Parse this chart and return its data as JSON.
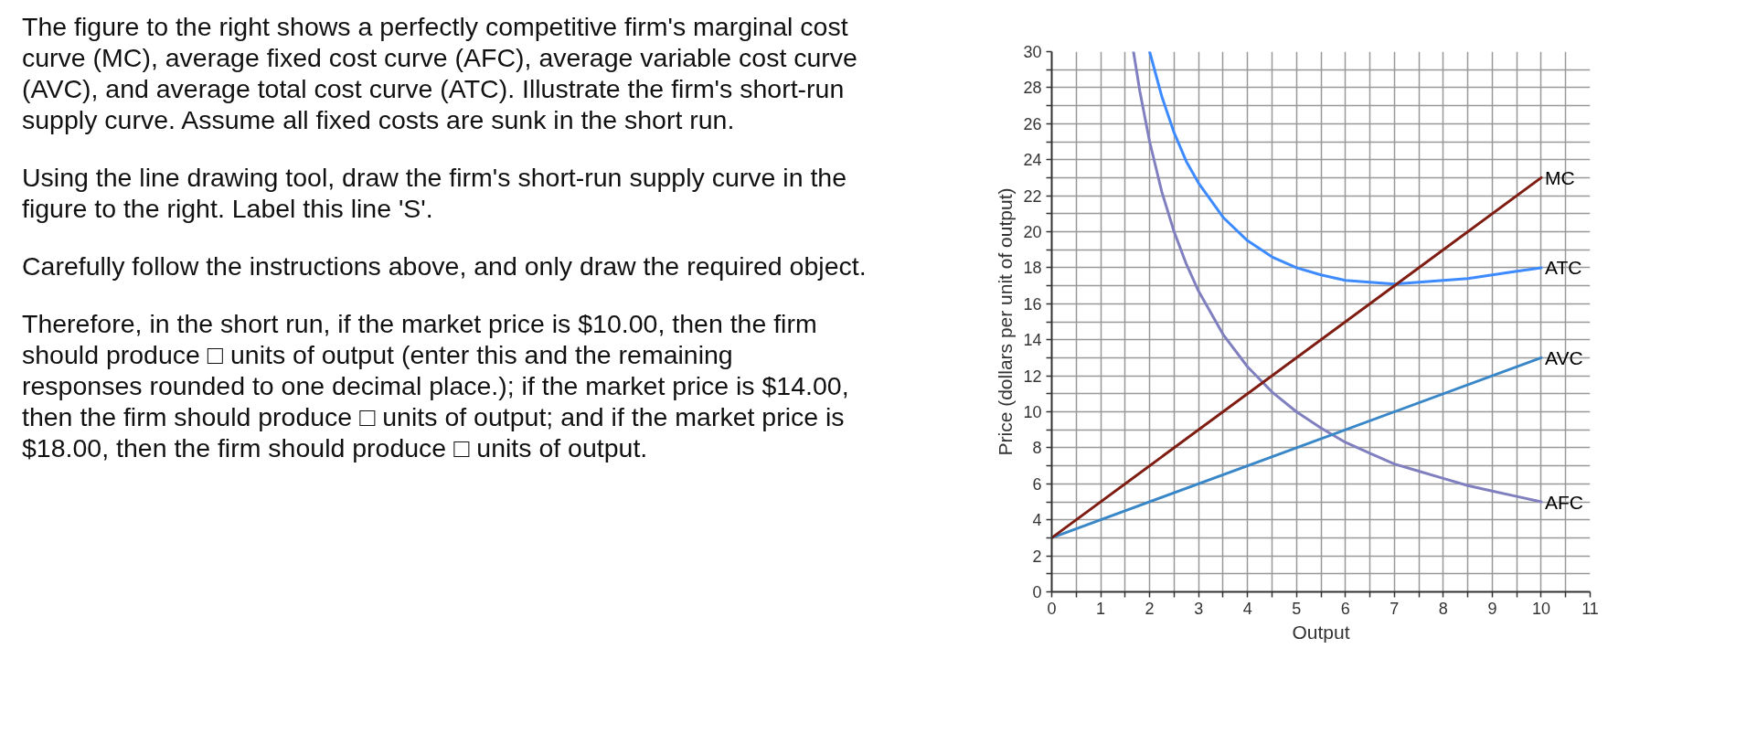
{
  "chart_data": {
    "type": "line",
    "xlabel": "Output",
    "ylabel": "Price (dollars per unit of output)",
    "xlim": [
      0,
      11
    ],
    "ylim": [
      0,
      30
    ],
    "xticks": [
      0,
      {
        "value": 0.5,
        "label": null
      },
      1,
      {
        "value": 1.5,
        "label": null
      },
      2,
      {
        "value": 2.5,
        "label": null
      },
      3,
      {
        "value": 3.5,
        "label": null
      },
      4,
      {
        "value": 4.5,
        "label": null
      },
      5,
      {
        "value": 5.5,
        "label": null
      },
      6,
      {
        "value": 6.5,
        "label": null
      },
      7,
      {
        "value": 7.5,
        "label": null
      },
      8,
      {
        "value": 8.5,
        "label": null
      },
      9,
      {
        "value": 9.5,
        "label": null
      },
      10,
      {
        "value": 10.5,
        "label": null
      },
      11
    ],
    "yticks": [
      0,
      {
        "value": 1,
        "label": null
      },
      2,
      {
        "value": 3,
        "label": null
      },
      4,
      {
        "value": 5,
        "label": null
      },
      6,
      {
        "value": 7,
        "label": null
      },
      8,
      {
        "value": 9,
        "label": null
      },
      10,
      {
        "value": 11,
        "label": null
      },
      12,
      {
        "value": 13,
        "label": null
      },
      14,
      {
        "value": 15,
        "label": null
      },
      16,
      {
        "value": 17,
        "label": null
      },
      18,
      {
        "value": 19,
        "label": null
      },
      20,
      {
        "value": 21,
        "label": null
      },
      22,
      {
        "value": 23,
        "label": null
      },
      24,
      {
        "value": 25,
        "label": null
      },
      26,
      {
        "value": 27,
        "label": null
      },
      28,
      {
        "value": 29,
        "label": null
      },
      30
    ],
    "grid": true,
    "annotations": [
      "The figure to the right shows a perfectly competitive firm's marginal cost\ncurve (MC), average fixed cost curve (AFC), average variable cost curve\n(AVC), and average total cost curve (ATC). Illustrate the firm's short-run\nsupply curve. Assume all fixed costs are sunk in the short run.",
      "Using the line drawing tool, draw the firm's short-run supply curve in the\nfigure to the right. Label this line 'S'.",
      "Carefully follow the instructions above, and only draw the required object.",
      "Therefore, in the short run, if the market price is $10.00, then the firm\nshould produce □ units of output (enter this and the remaining\nresponses rounded to one decimal place.); if the market price is $14.00,\nthen the firm should produce □ units of output; and if the market price is\n$18.00, then the firm should produce □ units of output."
    ],
    "series": [
      {
        "name": "AFC",
        "color": "#8080c0",
        "x": [
          1.67,
          1.8,
          2,
          2.25,
          2.5,
          2.75,
          3,
          3.5,
          4,
          4.5,
          5,
          5.5,
          6,
          6.5,
          7,
          7.5,
          8,
          8.5,
          9,
          9.5,
          10
        ],
        "values": [
          30,
          27.8,
          25,
          22.2,
          20,
          18.2,
          16.7,
          14.3,
          12.5,
          11.1,
          10,
          9.1,
          8.3,
          7.7,
          7.1,
          6.7,
          6.3,
          5.9,
          5.6,
          5.3,
          5
        ]
      },
      {
        "name": "AVC",
        "color": "#3a87c8",
        "x": [
          0,
          10
        ],
        "values": [
          3,
          13
        ]
      },
      {
        "name": "ATC",
        "color": "#3d8bff",
        "x": [
          2,
          2.25,
          2.5,
          2.75,
          3,
          3.5,
          4,
          4.5,
          5,
          5.5,
          6,
          6.5,
          7,
          7.5,
          8,
          8.5,
          9,
          9.5,
          10
        ],
        "values": [
          30,
          27.5,
          25.5,
          23.9,
          22.7,
          20.8,
          19.5,
          18.6,
          18,
          17.6,
          17.3,
          17.2,
          17.1,
          17.2,
          17.3,
          17.4,
          17.6,
          17.8,
          18
        ]
      },
      {
        "name": "MC",
        "color": "#7f1d12",
        "x": [
          0,
          10
        ],
        "values": [
          3,
          23
        ]
      }
    ]
  }
}
